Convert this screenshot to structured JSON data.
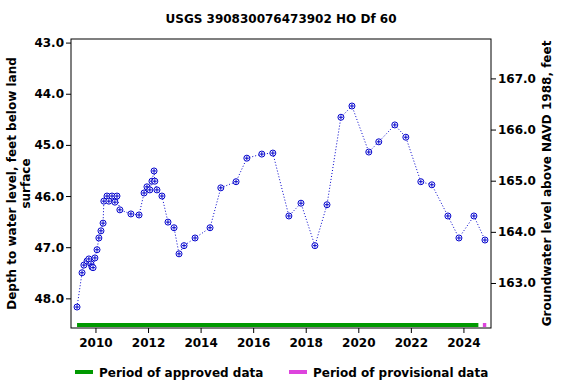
{
  "chart_data": {
    "type": "line",
    "title": "USGS 390830076473902 HO Df  60",
    "y_label": [
      "Depth to water level, feet below land",
      "surface"
    ],
    "y2_label": "Groundwater level above NAVD 1988, feet",
    "x": [
      2009.28,
      2009.47,
      2009.54,
      2009.66,
      2009.73,
      2009.81,
      2009.85,
      2009.89,
      2009.96,
      2010.04,
      2010.11,
      2010.19,
      2010.27,
      2010.3,
      2010.42,
      2010.49,
      2010.61,
      2010.72,
      2010.8,
      2010.91,
      2011.33,
      2011.64,
      2011.83,
      2011.94,
      2012.05,
      2012.13,
      2012.21,
      2012.24,
      2012.32,
      2012.51,
      2012.74,
      2012.97,
      2013.16,
      2013.35,
      2013.77,
      2014.34,
      2014.75,
      2015.33,
      2015.74,
      2016.31,
      2016.73,
      2017.34,
      2017.8,
      2018.33,
      2018.79,
      2019.32,
      2019.74,
      2020.38,
      2020.76,
      2021.37,
      2021.79,
      2022.36,
      2022.78,
      2023.39,
      2023.81,
      2024.38,
      2024.8
    ],
    "series": [
      {
        "name": "Depth to water level",
        "color": "#0000cc",
        "marker": "circle-plus",
        "line_style": "dotted",
        "values": [
          48.16,
          47.49,
          47.34,
          47.26,
          47.22,
          47.32,
          47.38,
          47.39,
          47.2,
          47.04,
          46.81,
          46.67,
          46.52,
          46.09,
          45.99,
          46.09,
          45.99,
          46.11,
          45.99,
          46.26,
          46.34,
          46.36,
          45.93,
          45.81,
          45.87,
          45.7,
          45.5,
          45.7,
          45.87,
          45.99,
          46.5,
          46.61,
          47.12,
          46.96,
          46.81,
          46.61,
          45.83,
          45.71,
          45.25,
          45.17,
          45.15,
          46.38,
          46.13,
          46.96,
          46.16,
          44.45,
          44.23,
          45.13,
          44.93,
          44.6,
          44.84,
          45.71,
          45.77,
          46.38,
          46.81,
          46.38,
          46.85
        ]
      }
    ],
    "xlim": [
      2009.05,
      2025.03
    ],
    "xticks": [
      2010,
      2012,
      2014,
      2016,
      2018,
      2020,
      2022,
      2024
    ],
    "ylim": [
      48.57,
      42.92
    ],
    "yticks": [
      {
        "value": 43,
        "label": "43.0"
      },
      {
        "value": 44,
        "label": "44.0"
      },
      {
        "value": 45,
        "label": "45.0"
      },
      {
        "value": 46,
        "label": "46.0"
      },
      {
        "value": 47,
        "label": "47.0"
      },
      {
        "value": 48,
        "label": "48.0"
      }
    ],
    "y2lim": [
      162.13,
      167.78
    ],
    "y2ticks": [
      {
        "value": 163,
        "label": "163.0"
      },
      {
        "value": 164,
        "label": "164.0"
      },
      {
        "value": 165,
        "label": "165.0"
      },
      {
        "value": 166,
        "label": "166.0"
      },
      {
        "value": 167,
        "label": "167.0"
      }
    ],
    "periods": [
      {
        "name": "Period of approved data",
        "color": "#009900",
        "start": 2009.28,
        "end": 2024.55
      },
      {
        "name": "Period of provisional data",
        "color": "#dd44dd",
        "start": 2024.72,
        "end": 2024.85
      }
    ],
    "grid": false
  }
}
